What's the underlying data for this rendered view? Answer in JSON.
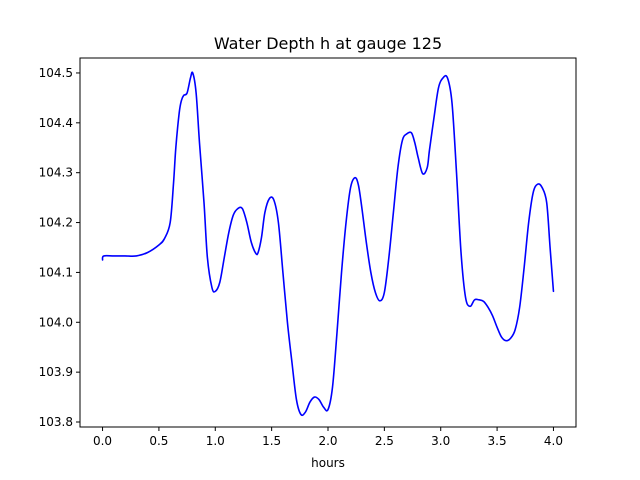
{
  "chart_data": {
    "type": "line",
    "title": "Water Depth h at gauge 125",
    "xlabel": "hours",
    "ylabel": "",
    "xlim": [
      -0.2,
      4.2
    ],
    "ylim": [
      103.79,
      104.53
    ],
    "grid": false,
    "legend": "none",
    "x_ticks": [
      0.0,
      0.5,
      1.0,
      1.5,
      2.0,
      2.5,
      3.0,
      3.5,
      4.0
    ],
    "x_tick_labels": [
      "0.0",
      "0.5",
      "1.0",
      "1.5",
      "2.0",
      "2.5",
      "3.0",
      "3.5",
      "4.0"
    ],
    "y_ticks": [
      103.8,
      103.9,
      104.0,
      104.1,
      104.2,
      104.3,
      104.4,
      104.5
    ],
    "y_tick_labels": [
      "103.8",
      "103.9",
      "104.0",
      "104.1",
      "104.2",
      "104.3",
      "104.4",
      "104.5"
    ],
    "series": [
      {
        "color": "#0000ff",
        "x": [
          0.0,
          0.01,
          0.1,
          0.2,
          0.3,
          0.4,
          0.5,
          0.55,
          0.6,
          0.63,
          0.65,
          0.68,
          0.7,
          0.72,
          0.75,
          0.78,
          0.8,
          0.83,
          0.86,
          0.9,
          0.93,
          0.97,
          1.0,
          1.04,
          1.08,
          1.12,
          1.16,
          1.2,
          1.24,
          1.28,
          1.32,
          1.36,
          1.38,
          1.41,
          1.44,
          1.48,
          1.52,
          1.56,
          1.6,
          1.64,
          1.68,
          1.72,
          1.76,
          1.8,
          1.84,
          1.88,
          1.92,
          1.96,
          2.0,
          2.04,
          2.08,
          2.12,
          2.16,
          2.2,
          2.24,
          2.27,
          2.3,
          2.34,
          2.38,
          2.42,
          2.46,
          2.5,
          2.54,
          2.58,
          2.62,
          2.66,
          2.7,
          2.74,
          2.77,
          2.8,
          2.84,
          2.88,
          2.9,
          2.94,
          2.98,
          3.02,
          3.06,
          3.1,
          3.14,
          3.18,
          3.22,
          3.26,
          3.3,
          3.34,
          3.38,
          3.42,
          3.46,
          3.5,
          3.54,
          3.58,
          3.62,
          3.66,
          3.7,
          3.74,
          3.78,
          3.82,
          3.86,
          3.9,
          3.94,
          3.97,
          4.0
        ],
        "y": [
          104.125,
          104.133,
          104.133,
          104.133,
          104.133,
          104.14,
          104.155,
          104.168,
          104.2,
          104.28,
          104.35,
          104.42,
          104.445,
          104.455,
          104.46,
          104.49,
          104.5,
          104.46,
          104.36,
          104.24,
          104.13,
          104.07,
          104.062,
          104.08,
          104.13,
          104.18,
          104.215,
          104.228,
          104.228,
          104.2,
          104.16,
          104.138,
          104.14,
          104.17,
          104.22,
          104.248,
          104.245,
          104.2,
          104.1,
          104.0,
          103.92,
          103.845,
          103.815,
          103.82,
          103.84,
          103.85,
          103.845,
          103.83,
          103.825,
          103.87,
          103.98,
          104.1,
          104.2,
          104.27,
          104.29,
          104.275,
          104.23,
          104.16,
          104.1,
          104.06,
          104.043,
          104.06,
          104.13,
          104.22,
          104.31,
          104.365,
          104.378,
          104.38,
          104.36,
          104.33,
          104.298,
          104.31,
          104.345,
          104.41,
          104.47,
          104.49,
          104.49,
          104.44,
          104.3,
          104.14,
          104.05,
          104.032,
          104.045,
          104.045,
          104.042,
          104.03,
          104.013,
          103.99,
          103.97,
          103.963,
          103.968,
          103.985,
          104.03,
          104.11,
          104.2,
          104.26,
          104.277,
          104.27,
          104.24,
          104.15,
          104.062
        ]
      }
    ]
  }
}
